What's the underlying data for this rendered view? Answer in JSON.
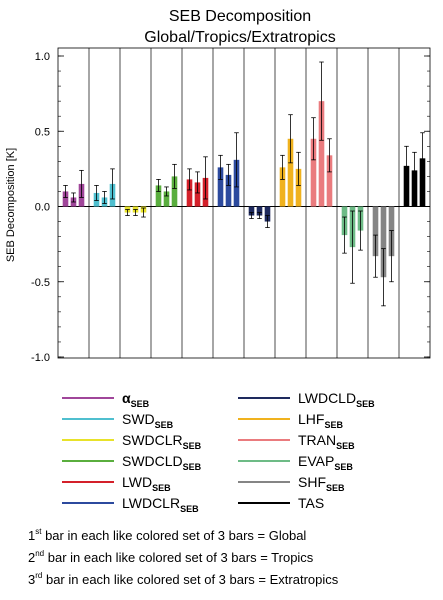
{
  "chart_data": {
    "type": "bar",
    "title_line1": "SEB Decomposition",
    "title_line2": "Global/Tropics/Extratropics",
    "ylabel": "SEB Decomposition [K]",
    "ylim": [
      -1.0,
      1.0
    ],
    "yticks": [
      {
        "value": 1.0,
        "label": "1.0"
      },
      {
        "value": 0.5,
        "label": "0.5"
      },
      {
        "value": 0.0,
        "label": "0.0"
      },
      {
        "value": -0.5,
        "label": "-0.5"
      },
      {
        "value": -1.0,
        "label": "-1.0"
      }
    ],
    "groups": [
      {
        "base": "α",
        "sub": "SEB",
        "color": "#a0469a",
        "values": [
          0.1,
          0.06,
          0.15
        ],
        "err": [
          0.04,
          0.03,
          0.09
        ]
      },
      {
        "base": "SWD",
        "sub": "SEB",
        "color": "#4fbfcf",
        "values": [
          0.09,
          0.06,
          0.15
        ],
        "err": [
          0.05,
          0.04,
          0.1
        ]
      },
      {
        "base": "SWDCLR",
        "sub": "SEB",
        "color": "#e8e22a",
        "values": [
          -0.04,
          -0.04,
          -0.04
        ],
        "err": [
          0.02,
          0.02,
          0.03
        ]
      },
      {
        "base": "SWDCLD",
        "sub": "SEB",
        "color": "#5aae3e",
        "values": [
          0.14,
          0.1,
          0.2
        ],
        "err": [
          0.04,
          0.03,
          0.08
        ]
      },
      {
        "base": "LWD",
        "sub": "SEB",
        "color": "#d4202a",
        "values": [
          0.18,
          0.16,
          0.19
        ],
        "err": [
          0.07,
          0.07,
          0.14
        ]
      },
      {
        "base": "LWDCLR",
        "sub": "SEB",
        "color": "#2c4a9e",
        "values": [
          0.26,
          0.21,
          0.31
        ],
        "err": [
          0.08,
          0.07,
          0.18
        ]
      },
      {
        "base": "LWDCLD",
        "sub": "SEB",
        "color": "#1e2a5e",
        "values": [
          -0.06,
          -0.06,
          -0.1
        ],
        "err": [
          0.02,
          0.02,
          0.04
        ]
      },
      {
        "base": "LHF",
        "sub": "SEB",
        "color": "#f0b21e",
        "values": [
          0.26,
          0.45,
          0.25
        ],
        "err": [
          0.08,
          0.16,
          0.11
        ]
      },
      {
        "base": "TRAN",
        "sub": "SEB",
        "color": "#ea7b7e",
        "values": [
          0.45,
          0.7,
          0.34
        ],
        "err": [
          0.14,
          0.26,
          0.11
        ]
      },
      {
        "base": "EVAP",
        "sub": "SEB",
        "color": "#6dbb86",
        "values": [
          -0.19,
          -0.27,
          -0.16
        ],
        "err": [
          0.12,
          0.24,
          0.13
        ]
      },
      {
        "base": "SHF",
        "sub": "SEB",
        "color": "#858585",
        "values": [
          -0.33,
          -0.47,
          -0.33
        ],
        "err": [
          0.14,
          0.19,
          0.17
        ]
      },
      {
        "base": "TAS",
        "sub": "",
        "color": "#000000",
        "values": [
          0.27,
          0.24,
          0.32
        ],
        "err": [
          0.13,
          0.12,
          0.17
        ]
      }
    ],
    "notes": [
      {
        "num": "1",
        "sup": "st",
        "text": " bar in each like colored set of 3 bars = Global"
      },
      {
        "num": "2",
        "sup": "nd",
        "text": " bar in each like colored set of 3 bars = Tropics"
      },
      {
        "num": "3",
        "sup": "rd",
        "text": " bar in each like colored set of 3 bars = Extratropics"
      }
    ]
  }
}
